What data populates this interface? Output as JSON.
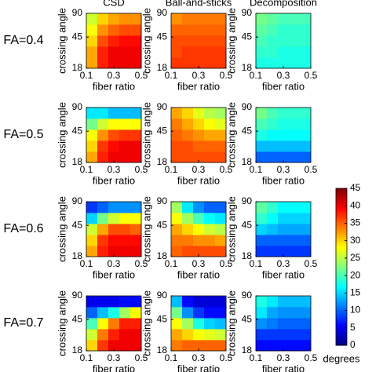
{
  "column_titles": [
    "CSD",
    "Ball-and-sticks",
    "Decomposition"
  ],
  "row_labels": [
    "FA=0.4",
    "FA=0.5",
    "FA=0.6",
    "FA=0.7"
  ],
  "colorbar": {
    "label": "degrees",
    "lim": [
      0,
      45
    ],
    "ticks": [
      0,
      5,
      10,
      15,
      20,
      25,
      30,
      35,
      40,
      45
    ],
    "colormap": "jet"
  },
  "chart_data": [
    {
      "type": "heatmap",
      "xlabel": "fiber ratio",
      "ylabel": "crossing angle",
      "xlim": [
        0.1,
        0.5
      ],
      "xticks": [
        0.1,
        0.3,
        0.5
      ],
      "ylim": [
        18,
        90
      ],
      "yticks": [
        18,
        45,
        90
      ],
      "ylog": true,
      "z": [
        [
          32,
          38,
          40,
          40,
          40
        ],
        [
          32,
          38,
          40,
          40,
          40
        ],
        [
          30,
          36,
          38,
          39,
          39
        ],
        [
          28,
          33,
          35,
          36,
          36
        ],
        [
          26,
          30,
          32,
          33,
          33
        ]
      ]
    },
    {
      "type": "heatmap",
      "xlabel": "fiber ratio",
      "ylabel": "crossing angle",
      "xlim": [
        0.1,
        0.5
      ],
      "xticks": [
        0.1,
        0.3,
        0.5
      ],
      "ylim": [
        18,
        90
      ],
      "yticks": [
        18,
        45,
        90
      ],
      "ylog": true,
      "z": [
        [
          37,
          37,
          37,
          37,
          37
        ],
        [
          36,
          37,
          37,
          37,
          37
        ],
        [
          36,
          36,
          36,
          36,
          36
        ],
        [
          35,
          35,
          35,
          35,
          35
        ],
        [
          33,
          34,
          34,
          34,
          34
        ]
      ]
    },
    {
      "type": "heatmap",
      "xlabel": "fiber ratio",
      "ylabel": "crossing angle",
      "xlim": [
        0.1,
        0.5
      ],
      "xticks": [
        0.1,
        0.3,
        0.5
      ],
      "ylim": [
        18,
        90
      ],
      "yticks": [
        18,
        45,
        90
      ],
      "ylog": true,
      "z": [
        [
          18,
          18,
          18,
          18,
          18
        ],
        [
          19,
          19,
          18,
          18,
          18
        ],
        [
          20,
          19,
          19,
          19,
          19
        ],
        [
          21,
          20,
          19,
          19,
          19
        ],
        [
          22,
          21,
          20,
          20,
          20
        ]
      ]
    },
    {
      "type": "heatmap",
      "xlabel": "fiber ratio",
      "ylabel": "crossing angle",
      "xlim": [
        0.1,
        0.5
      ],
      "xticks": [
        0.1,
        0.3,
        0.5
      ],
      "ylim": [
        18,
        90
      ],
      "yticks": [
        18,
        45,
        90
      ],
      "ylog": true,
      "z": [
        [
          32,
          38,
          40,
          40,
          40
        ],
        [
          30,
          37,
          39,
          40,
          40
        ],
        [
          28,
          33,
          36,
          37,
          37
        ],
        [
          22,
          26,
          28,
          28,
          28
        ],
        [
          16,
          16,
          14,
          14,
          14
        ]
      ]
    },
    {
      "type": "heatmap",
      "xlabel": "fiber ratio",
      "ylabel": "crossing angle",
      "xlim": [
        0.1,
        0.5
      ],
      "xticks": [
        0.1,
        0.3,
        0.5
      ],
      "ylim": [
        18,
        90
      ],
      "yticks": [
        18,
        45,
        90
      ],
      "ylog": true,
      "z": [
        [
          36,
          36,
          36,
          36,
          36
        ],
        [
          36,
          36,
          35,
          35,
          35
        ],
        [
          35,
          34,
          33,
          32,
          32
        ],
        [
          34,
          32,
          30,
          28,
          27
        ],
        [
          32,
          30,
          27,
          25,
          24
        ]
      ]
    },
    {
      "type": "heatmap",
      "xlabel": "fiber ratio",
      "ylabel": "crossing angle",
      "xlim": [
        0.1,
        0.5
      ],
      "xticks": [
        0.1,
        0.3,
        0.5
      ],
      "ylim": [
        18,
        90
      ],
      "yticks": [
        18,
        45,
        90
      ],
      "ylog": true,
      "z": [
        [
          10,
          10,
          10,
          10,
          10
        ],
        [
          14,
          14,
          14,
          14,
          14
        ],
        [
          18,
          17,
          17,
          17,
          17
        ],
        [
          20,
          19,
          18,
          18,
          18
        ],
        [
          22,
          20,
          19,
          19,
          19
        ]
      ]
    },
    {
      "type": "heatmap",
      "xlabel": "fiber ratio",
      "ylabel": "crossing angle",
      "xlim": [
        0.1,
        0.5
      ],
      "xticks": [
        0.1,
        0.3,
        0.5
      ],
      "ylim": [
        18,
        90
      ],
      "yticks": [
        18,
        45,
        90
      ],
      "ylog": true,
      "z": [
        [
          32,
          38,
          40,
          40,
          40
        ],
        [
          30,
          37,
          39,
          39,
          39
        ],
        [
          26,
          32,
          36,
          36,
          35
        ],
        [
          15,
          22,
          26,
          28,
          28
        ],
        [
          8,
          10,
          12,
          12,
          12
        ]
      ]
    },
    {
      "type": "heatmap",
      "xlabel": "fiber ratio",
      "ylabel": "crossing angle",
      "xlim": [
        0.1,
        0.5
      ],
      "xticks": [
        0.1,
        0.3,
        0.5
      ],
      "ylim": [
        18,
        90
      ],
      "yticks": [
        18,
        45,
        90
      ],
      "ylog": true,
      "z": [
        [
          35,
          36,
          36,
          36,
          36
        ],
        [
          34,
          34,
          33,
          33,
          32
        ],
        [
          32,
          30,
          28,
          26,
          25
        ],
        [
          28,
          24,
          20,
          17,
          16
        ],
        [
          24,
          16,
          12,
          10,
          10
        ]
      ]
    },
    {
      "type": "heatmap",
      "xlabel": "fiber ratio",
      "ylabel": "crossing angle",
      "xlim": [
        0.1,
        0.5
      ],
      "xticks": [
        0.1,
        0.3,
        0.5
      ],
      "ylim": [
        18,
        90
      ],
      "yticks": [
        18,
        45,
        90
      ],
      "ylog": true,
      "z": [
        [
          8,
          8,
          8,
          8,
          8
        ],
        [
          10,
          10,
          10,
          10,
          10
        ],
        [
          15,
          14,
          13,
          13,
          13
        ],
        [
          19,
          17,
          15,
          15,
          15
        ],
        [
          21,
          19,
          17,
          17,
          17
        ]
      ]
    },
    {
      "type": "heatmap",
      "xlabel": "fiber ratio",
      "ylabel": "crossing angle",
      "xlim": [
        0.1,
        0.5
      ],
      "xticks": [
        0.1,
        0.3,
        0.5
      ],
      "ylim": [
        18,
        90
      ],
      "yticks": [
        18,
        45,
        90
      ],
      "ylog": true,
      "z": [
        [
          30,
          37,
          40,
          40,
          40
        ],
        [
          26,
          34,
          38,
          40,
          40
        ],
        [
          20,
          28,
          34,
          38,
          38
        ],
        [
          10,
          14,
          18,
          24,
          28
        ],
        [
          5,
          5,
          5,
          6,
          6
        ]
      ]
    },
    {
      "type": "heatmap",
      "xlabel": "fiber ratio",
      "ylabel": "crossing angle",
      "xlim": [
        0.1,
        0.5
      ],
      "xticks": [
        0.1,
        0.3,
        0.5
      ],
      "ylim": [
        18,
        90
      ],
      "yticks": [
        18,
        45,
        90
      ],
      "ylog": true,
      "z": [
        [
          34,
          35,
          35,
          35,
          35
        ],
        [
          32,
          30,
          28,
          27,
          26
        ],
        [
          28,
          24,
          18,
          15,
          14
        ],
        [
          22,
          12,
          8,
          6,
          6
        ],
        [
          14,
          6,
          4,
          4,
          4
        ]
      ]
    },
    {
      "type": "heatmap",
      "xlabel": "fiber ratio",
      "ylabel": "crossing angle",
      "xlim": [
        0.1,
        0.5
      ],
      "xticks": [
        0.1,
        0.3,
        0.5
      ],
      "ylim": [
        18,
        90
      ],
      "yticks": [
        18,
        45,
        90
      ],
      "ylog": true,
      "z": [
        [
          6,
          6,
          6,
          6,
          6
        ],
        [
          8,
          8,
          8,
          8,
          8
        ],
        [
          12,
          11,
          10,
          10,
          10
        ],
        [
          16,
          13,
          12,
          12,
          12
        ],
        [
          18,
          16,
          14,
          14,
          14
        ]
      ]
    }
  ]
}
